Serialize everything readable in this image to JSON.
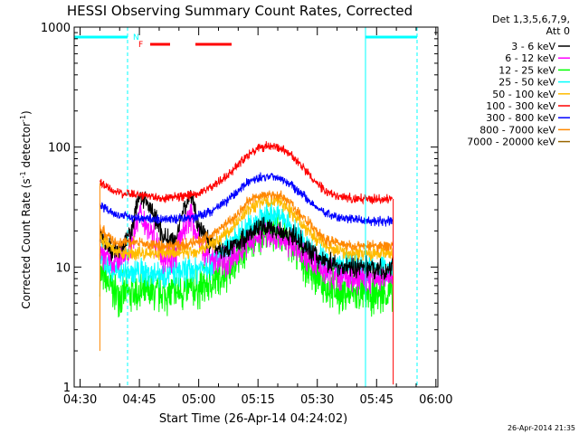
{
  "chart_data": {
    "type": "line",
    "title": "HESSI Observing Summary Count Rates, Corrected",
    "xlabel": "Start Time (26-Apr-14 04:24:02)",
    "ylabel_main": "Corrected Count Rate (s",
    "ylabel_sup1": "-1",
    "ylabel_mid": " detector",
    "ylabel_sup2": "-1",
    "ylabel_end": ")",
    "y_scale": "log",
    "ylim": [
      1,
      1000
    ],
    "xlim_minutes": [
      4.5,
      96.5
    ],
    "x_ticks": [
      {
        "m": 6,
        "label": "04:30"
      },
      {
        "m": 21,
        "label": "04:45"
      },
      {
        "m": 36,
        "label": "05:00"
      },
      {
        "m": 51,
        "label": "05:15"
      },
      {
        "m": 66,
        "label": "05:30"
      },
      {
        "m": 81,
        "label": "05:45"
      },
      {
        "m": 96,
        "label": "06:00"
      }
    ],
    "y_ticks": [
      {
        "v": 1,
        "label": "1"
      },
      {
        "v": 10,
        "label": "10"
      },
      {
        "v": 100,
        "label": "100"
      },
      {
        "v": 1000,
        "label": "1000"
      }
    ],
    "legend_header": "Det 1,3,5,6,7,9,",
    "legend_sub": "Att 0",
    "legend_position": "right",
    "date_stamp": "26-Apr-2014 21:35",
    "series": [
      {
        "name": "3 - 6 keV",
        "color": "#000000",
        "x": [
          11,
          14,
          17,
          19,
          21,
          24,
          27,
          30,
          32,
          34,
          36,
          39,
          42,
          45,
          48,
          51,
          54,
          57,
          60,
          63,
          66,
          69,
          72,
          75,
          78,
          81,
          83,
          85
        ],
        "y": [
          18,
          14,
          15,
          20,
          40,
          30,
          18,
          16,
          30,
          40,
          22,
          16,
          14,
          15,
          18,
          21,
          21,
          20,
          18,
          15,
          12,
          11,
          10,
          10,
          10,
          10,
          9,
          10
        ]
      },
      {
        "name": "6 - 12 keV",
        "color": "#ff00ff",
        "x": [
          11,
          14,
          17,
          19,
          21,
          24,
          27,
          30,
          32,
          34,
          36,
          39,
          42,
          45,
          48,
          51,
          54,
          57,
          60,
          63,
          66,
          69,
          72,
          75,
          78,
          81,
          83,
          85
        ],
        "y": [
          14,
          11,
          12,
          16,
          28,
          20,
          12,
          12,
          20,
          28,
          16,
          12,
          11,
          12,
          15,
          18,
          18,
          17,
          15,
          12,
          10,
          9,
          8,
          8,
          8,
          8,
          8,
          8
        ]
      },
      {
        "name": "12 - 25 keV",
        "color": "#00ff00",
        "x": [
          11,
          15,
          20,
          25,
          30,
          35,
          40,
          45,
          48,
          51,
          53,
          55,
          57,
          59,
          62,
          65,
          68,
          71,
          75,
          79,
          83,
          85
        ],
        "y": [
          9,
          6,
          6,
          6,
          6,
          6.5,
          7.5,
          11,
          15,
          18,
          20,
          20,
          19,
          16,
          12,
          9,
          7,
          6,
          6,
          6,
          6,
          6
        ]
      },
      {
        "name": "25 - 50 keV",
        "color": "#00ffff",
        "x": [
          11,
          15,
          20,
          25,
          30,
          35,
          40,
          45,
          48,
          51,
          53,
          55,
          57,
          59,
          62,
          65,
          68,
          71,
          75,
          79,
          83,
          85
        ],
        "y": [
          12,
          9,
          9,
          9,
          9,
          9.5,
          11,
          16,
          21,
          25,
          27,
          27,
          26,
          22,
          17,
          13,
          11,
          10,
          10,
          10,
          10,
          10
        ]
      },
      {
        "name": "50 - 100 keV",
        "color": "#ffbb00",
        "x": [
          11,
          15,
          20,
          25,
          30,
          35,
          40,
          45,
          48,
          51,
          53,
          55,
          57,
          59,
          62,
          65,
          68,
          71,
          75,
          79,
          83,
          85
        ],
        "y": [
          18,
          13,
          13,
          13,
          13,
          13.5,
          16,
          22,
          29,
          34,
          35,
          35,
          34,
          30,
          23,
          18,
          15,
          14,
          13,
          13,
          13,
          13
        ]
      },
      {
        "name": "100 - 300 keV",
        "color": "#ff0000",
        "x": [
          11,
          15,
          20,
          25,
          30,
          35,
          40,
          45,
          48,
          51,
          53,
          55,
          57,
          59,
          62,
          65,
          68,
          71,
          75,
          79,
          83,
          85
        ],
        "y": [
          50,
          42,
          40,
          38,
          38,
          40,
          48,
          66,
          85,
          98,
          100,
          100,
          97,
          88,
          70,
          53,
          43,
          39,
          37,
          37,
          37,
          37
        ]
      },
      {
        "name": "300 - 800 keV",
        "color": "#0000ff",
        "x": [
          11,
          15,
          20,
          25,
          30,
          35,
          40,
          45,
          48,
          51,
          53,
          55,
          57,
          59,
          62,
          65,
          68,
          71,
          75,
          79,
          83,
          85
        ],
        "y": [
          33,
          27,
          26,
          25,
          25,
          26,
          30,
          40,
          50,
          55,
          57,
          57,
          55,
          50,
          41,
          33,
          28,
          26,
          25,
          24,
          24,
          24
        ]
      },
      {
        "name": "800 - 7000 keV",
        "color": "#ff8800",
        "x": [
          11,
          15,
          20,
          25,
          30,
          35,
          40,
          45,
          48,
          51,
          53,
          55,
          57,
          59,
          62,
          65,
          68,
          71,
          75,
          79,
          83,
          85
        ],
        "y": [
          21,
          16,
          16,
          15,
          15,
          16,
          19,
          26,
          34,
          39,
          40,
          40,
          39,
          35,
          27,
          21,
          17,
          16,
          15,
          15,
          15,
          15
        ]
      },
      {
        "name": "7000 - 20000 keV",
        "color": "#996600",
        "x": [],
        "y": []
      }
    ],
    "annotations": {
      "n_flag": "N",
      "f_flag": "F"
    }
  }
}
